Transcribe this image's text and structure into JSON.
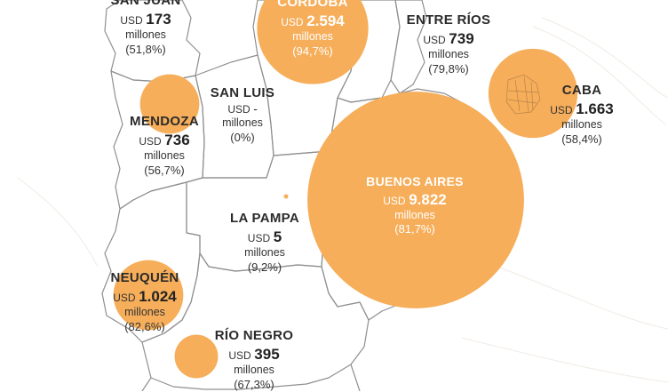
{
  "colors": {
    "bubble": "#F6AE5A",
    "border": "#8f8f8f",
    "text_dark": "#2b2b2b",
    "text_light": "#ffffff"
  },
  "currency": "USD",
  "unit": "millones",
  "regions": [
    {
      "key": "san_juan",
      "name": "SAN JUAN",
      "amount": "173",
      "pct": "(51,8%)",
      "amount_num": 173
    },
    {
      "key": "cordoba",
      "name": "CÓRDOBA",
      "amount": "2.594",
      "pct": "(94,7%)",
      "amount_num": 2594
    },
    {
      "key": "entre_rios",
      "name": "ENTRE RÍOS",
      "amount": "739",
      "pct": "(79,8%)",
      "amount_num": 739
    },
    {
      "key": "caba",
      "name": "CABA",
      "amount": "1.663",
      "pct": "(58,4%)",
      "amount_num": 1663
    },
    {
      "key": "mendoza",
      "name": "MENDOZA",
      "amount": "736",
      "pct": "(56,7%)",
      "amount_num": 736
    },
    {
      "key": "san_luis",
      "name": "SAN LUIS",
      "amount": "-",
      "pct": "(0%)",
      "amount_num": 0
    },
    {
      "key": "buenos_aires",
      "name": "BUENOS AIRES",
      "amount": "9.822",
      "pct": "(81,7%)",
      "amount_num": 9822
    },
    {
      "key": "la_pampa",
      "name": "LA PAMPA",
      "amount": "5",
      "pct": "(9,2%)",
      "amount_num": 5
    },
    {
      "key": "neuquen",
      "name": "NEUQUÉN",
      "amount": "1.024",
      "pct": "(82,6%)",
      "amount_num": 1024
    },
    {
      "key": "rio_negro",
      "name": "RÍO NEGRO",
      "amount": "395",
      "pct": "(67,3%)",
      "amount_num": 395
    }
  ]
}
